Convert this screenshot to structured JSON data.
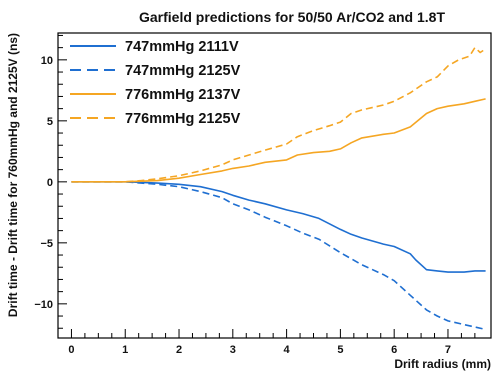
{
  "chart_data": {
    "type": "line",
    "title": "Garfield predictions for 50/50 Ar/CO2 and 1.8T",
    "xlabel": "Drift radius (mm)",
    "ylabel": "Drift time - Drift time for 760mmHg and 2125V (ns)",
    "xlim": [
      -0.25,
      7.8
    ],
    "ylim": [
      -12.8,
      12.2
    ],
    "xticks": [
      0,
      1,
      2,
      3,
      4,
      5,
      6,
      7
    ],
    "yticks": [
      -10,
      -5,
      0,
      5,
      10
    ],
    "grid": false,
    "legend_position": "top-left",
    "series": [
      {
        "name": "747mmHg 2111V",
        "color": "#1f6fd1",
        "dash": "solid",
        "x": [
          0,
          0.5,
          1.0,
          1.3,
          1.6,
          2.0,
          2.4,
          2.8,
          3.0,
          3.3,
          3.6,
          4.0,
          4.3,
          4.6,
          5.0,
          5.2,
          5.4,
          5.8,
          6.0,
          6.3,
          6.4,
          6.6,
          6.8,
          7.0,
          7.3,
          7.5,
          7.7
        ],
        "y": [
          0,
          0,
          0,
          -0.05,
          -0.1,
          -0.2,
          -0.4,
          -0.8,
          -1.1,
          -1.5,
          -1.8,
          -2.3,
          -2.6,
          -3.0,
          -3.9,
          -4.3,
          -4.6,
          -5.1,
          -5.3,
          -5.9,
          -6.4,
          -7.2,
          -7.3,
          -7.4,
          -7.4,
          -7.3,
          -7.3
        ]
      },
      {
        "name": "747mmHg 2125V",
        "color": "#1f6fd1",
        "dash": "dashed",
        "x": [
          0,
          0.5,
          1.0,
          1.3,
          1.6,
          2.0,
          2.4,
          2.8,
          3.0,
          3.3,
          3.6,
          4.0,
          4.3,
          4.6,
          5.0,
          5.2,
          5.4,
          5.8,
          6.0,
          6.3,
          6.6,
          6.8,
          7.0,
          7.3,
          7.5,
          7.7
        ],
        "y": [
          0,
          0,
          0,
          -0.1,
          -0.2,
          -0.4,
          -0.8,
          -1.3,
          -1.8,
          -2.3,
          -2.9,
          -3.6,
          -4.2,
          -4.7,
          -5.8,
          -6.3,
          -6.8,
          -7.6,
          -8.1,
          -9.3,
          -10.5,
          -11.0,
          -11.4,
          -11.7,
          -11.9,
          -12.1
        ]
      },
      {
        "name": "776mmHg 2137V",
        "color": "#f5a623",
        "dash": "solid",
        "x": [
          0,
          0.5,
          1.0,
          1.3,
          1.6,
          2.0,
          2.4,
          2.8,
          3.0,
          3.3,
          3.6,
          4.0,
          4.2,
          4.5,
          4.8,
          5.0,
          5.2,
          5.4,
          5.8,
          6.0,
          6.3,
          6.6,
          6.8,
          7.0,
          7.3,
          7.5,
          7.7
        ],
        "y": [
          0,
          0,
          0,
          0.05,
          0.1,
          0.3,
          0.6,
          0.9,
          1.1,
          1.3,
          1.6,
          1.8,
          2.2,
          2.4,
          2.5,
          2.7,
          3.2,
          3.6,
          3.9,
          4.0,
          4.5,
          5.6,
          6.0,
          6.2,
          6.4,
          6.6,
          6.8
        ]
      },
      {
        "name": "776mmHg 2125V",
        "color": "#f5a623",
        "dash": "dashed",
        "x": [
          0,
          0.5,
          1.0,
          1.3,
          1.6,
          2.0,
          2.4,
          2.8,
          3.0,
          3.3,
          3.6,
          4.0,
          4.2,
          4.5,
          4.8,
          5.0,
          5.2,
          5.4,
          5.8,
          6.0,
          6.3,
          6.6,
          6.8,
          7.0,
          7.2,
          7.4,
          7.5,
          7.6,
          7.7
        ],
        "y": [
          0,
          0,
          0,
          0.1,
          0.25,
          0.5,
          0.9,
          1.4,
          1.8,
          2.2,
          2.6,
          3.1,
          3.7,
          4.2,
          4.6,
          4.9,
          5.6,
          5.9,
          6.3,
          6.6,
          7.3,
          8.2,
          8.6,
          9.5,
          10.0,
          10.3,
          11.0,
          10.6,
          10.9
        ]
      }
    ]
  }
}
